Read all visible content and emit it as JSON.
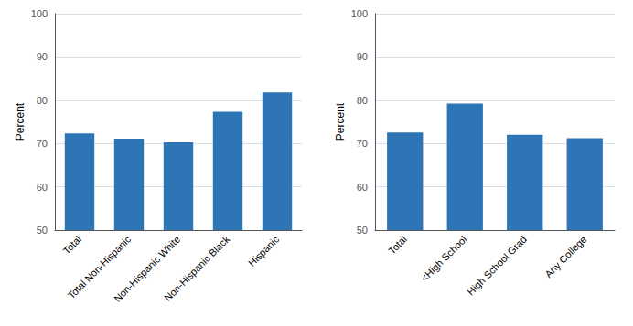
{
  "chart_data": [
    {
      "type": "bar",
      "categories": [
        "Total",
        "Total Non-Hispanic",
        "Non-Hispanic White",
        "Non-Hispanic Black",
        "Hispanic"
      ],
      "values": [
        72.3,
        71.1,
        70.3,
        77.3,
        81.8
      ],
      "ylabel": "Percent",
      "color": "#2E75B6",
      "ylim": [
        50,
        100
      ],
      "yticks": [
        50,
        60,
        70,
        80,
        90,
        100
      ],
      "grid": true
    },
    {
      "type": "bar",
      "categories": [
        "Total",
        "<High School",
        "High School Grad",
        "Any College"
      ],
      "values": [
        72.5,
        79.2,
        72.0,
        71.2
      ],
      "ylabel": "Percent",
      "color": "#2E75B6",
      "ylim": [
        50,
        100
      ],
      "yticks": [
        50,
        60,
        70,
        80,
        90,
        100
      ],
      "grid": true
    }
  ]
}
